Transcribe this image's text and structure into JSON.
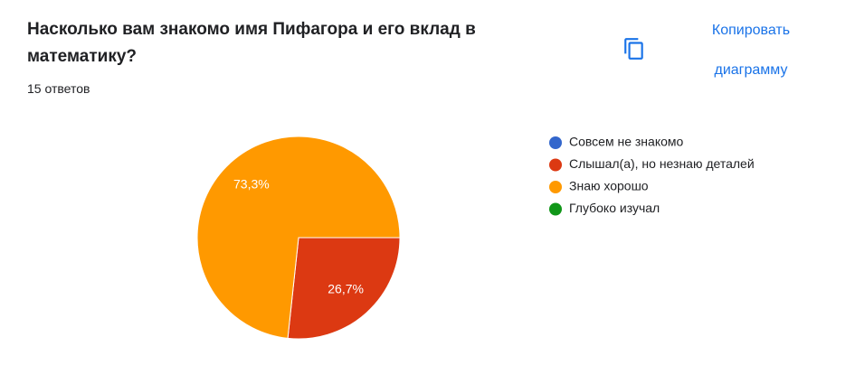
{
  "chart_data": {
    "type": "pie",
    "title": "Насколько вам знакомо имя Пифагора и его вклад в математику?",
    "subtitle": "15 ответов",
    "copy_button": "Копировать диаграмму",
    "categories": [
      "Совсем не знакомо",
      "Слышал(а), но незнаю деталей",
      "Знаю хорошо",
      "Глубоко изучал"
    ],
    "values": [
      0,
      26.7,
      73.3,
      0
    ],
    "value_labels": [
      null,
      "26,7%",
      "73,3%",
      null
    ],
    "colors": [
      "#3366cc",
      "#dc3912",
      "#ff9900",
      "#109618"
    ],
    "legend": "right"
  }
}
